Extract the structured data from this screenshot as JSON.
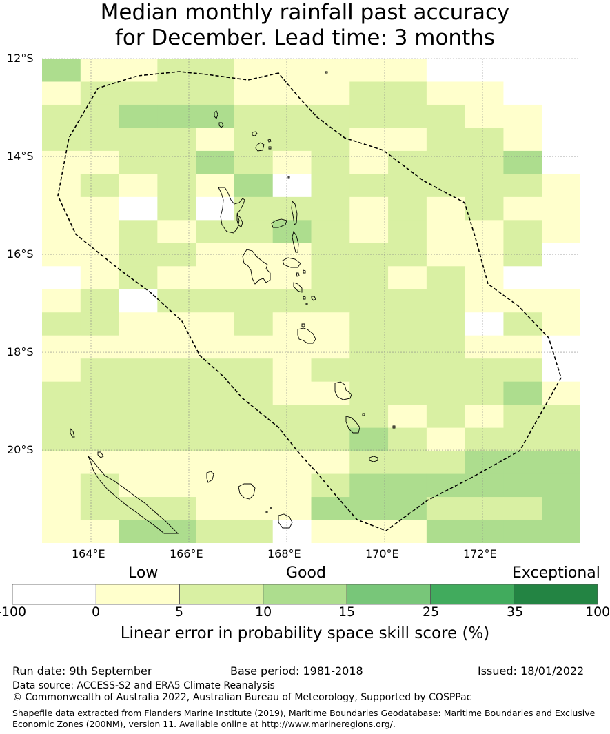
{
  "title": {
    "line1": "Median monthly rainfall past accuracy",
    "line2": "for December. Lead time: 3 months"
  },
  "map": {
    "lat_labels": [
      "12°S",
      "14°S",
      "16°S",
      "18°S",
      "20°S"
    ],
    "lon_labels": [
      "164°E",
      "166°E",
      "168°E",
      "170°E",
      "172°E"
    ],
    "region": "Vanuatu EEZ"
  },
  "colorbar": {
    "categories": [
      "Low",
      "Good",
      "Exceptional"
    ],
    "ticks": [
      "-100",
      "0",
      "5",
      "10",
      "15",
      "25",
      "35",
      "100"
    ],
    "colors": [
      "#ffffff",
      "#ffffcc",
      "#d9f0a3",
      "#addd8e",
      "#78c679",
      "#41ab5d",
      "#238443"
    ],
    "label": "Linear error in probability space skill score (%)"
  },
  "footer": {
    "run_date": "Run date: 9th September",
    "base_period": "Base period: 1981-2018",
    "issued": "Issued: 18/01/2022",
    "data_source": "Data source: ACCESS-S2 and ERA5 Climate Reanalysis",
    "copyright": "© Commonwealth of Australia 2022, Australian Bureau of Meteorology, Supported by COSPPac",
    "shapefile_line1": "Shapefile data extracted from Flanders Marine Institute (2019), Maritime Boundaries Geodatabase: Maritime Boundaries and Exclusive",
    "shapefile_line2": "Economic Zones (200NM), version 11. Available online at http://www.marineregions.org/."
  },
  "chart_data": {
    "type": "heatmap",
    "title": "Median monthly rainfall past accuracy for December. Lead time: 3 months",
    "xlabel": "",
    "ylabel": "",
    "lon_range": [
      163,
      174
    ],
    "lat_range": [
      -21.9,
      -12
    ],
    "lon_ticks": [
      164,
      166,
      168,
      170,
      172
    ],
    "lat_ticks": [
      -12,
      -14,
      -16,
      -18,
      -20
    ],
    "colorbar_label": "Linear error in probability space skill score (%)",
    "bins": [
      -100,
      0,
      5,
      10,
      15,
      25,
      35,
      100
    ],
    "category_index_legend": "0:-100..0, 1:0..5, 2:5..10, 3:10..15, 4:15..25, 5:25..35, 6:35..100",
    "grid": [
      "31122111110000",
      "12222111221100",
      "22333222222110",
      "22221222112210",
      "11223212122230",
      "12121302222221",
      "11020222121211",
      "11212232121121",
      "11221112221120",
      "01211112212100",
      "12022222222111",
      "22111211222021",
      "11111111222110",
      "12222212222220",
      "22222211222231",
      "22222222212122",
      "22222222321222",
      "11111111222333",
      "12111112333333",
      "12221113332223",
      "11332201113333"
    ]
  }
}
